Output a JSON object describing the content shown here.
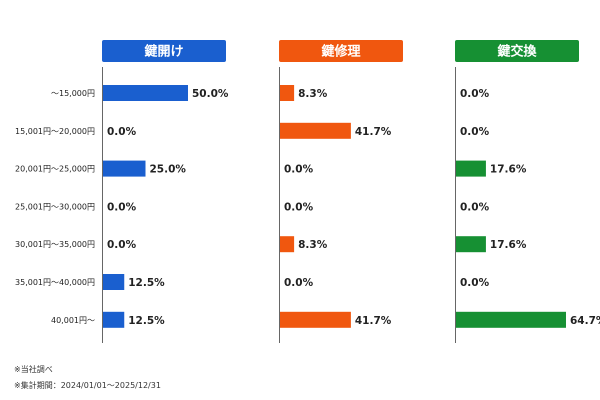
{
  "chart_data": {
    "type": "bar",
    "orientation": "horizontal",
    "categories": [
      "〜15,000円",
      "15,001円〜20,000円",
      "20,001円〜25,000円",
      "25,001円〜30,000円",
      "30,001円〜35,000円",
      "35,001円〜40,000円",
      "40,001円〜"
    ],
    "xlim": [
      0,
      100
    ],
    "value_suffix": "%",
    "series": [
      {
        "name": "鍵開け",
        "color": "#1a5fcf",
        "values": [
          50.0,
          0.0,
          25.0,
          0.0,
          0.0,
          12.5,
          12.5
        ]
      },
      {
        "name": "鍵修理",
        "color": "#f0570f",
        "values": [
          8.3,
          41.7,
          0.0,
          0.0,
          8.3,
          0.0,
          41.7
        ]
      },
      {
        "name": "鍵交換",
        "color": "#169033",
        "values": [
          0.0,
          0.0,
          17.6,
          0.0,
          17.6,
          0.0,
          64.7
        ]
      }
    ],
    "grid": false,
    "legend": "none"
  },
  "footnotes": [
    "※当社調べ",
    "※集計期間：2024/01/01〜2025/12/31"
  ]
}
